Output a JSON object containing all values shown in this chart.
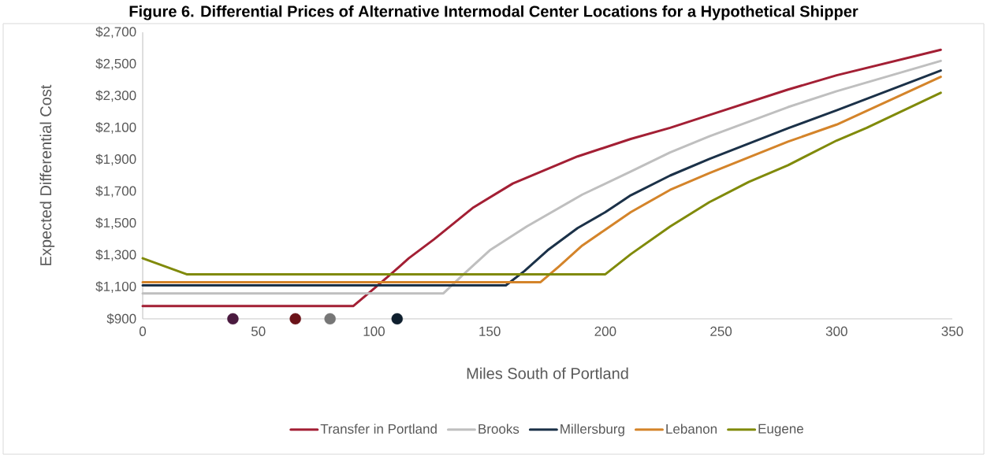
{
  "chart_data": {
    "type": "line",
    "title": "Figure 6. Differential Prices of Alternative Intermodal Center Locations for a Hypothetical Shipper",
    "xlabel": "Miles South of Portland",
    "ylabel": "Expected Differential Cost",
    "xlim": [
      0,
      350
    ],
    "xticks": [
      0,
      50,
      100,
      150,
      200,
      250,
      300,
      350
    ],
    "ylim": [
      900,
      2700
    ],
    "yticks": [
      {
        "value": 900,
        "label": "$900"
      },
      {
        "value": 1100,
        "label": "$1,100"
      },
      {
        "value": 1300,
        "label": "$1,300"
      },
      {
        "value": 1500,
        "label": "$1,500"
      },
      {
        "value": 1700,
        "label": "$1,700"
      },
      {
        "value": 1900,
        "label": "$1,900"
      },
      {
        "value": 2100,
        "label": "$2,100"
      },
      {
        "value": 2300,
        "label": "$2,300"
      },
      {
        "value": 2500,
        "label": "$2,500"
      },
      {
        "value": 2700,
        "label": "$2,700"
      }
    ],
    "grid": false,
    "legend": "bottom",
    "series": [
      {
        "name": "Transfer in Portland",
        "color": "#a31f34",
        "x": [
          0,
          91,
          100,
          108,
          115,
          126,
          143,
          160,
          188,
          211,
          228,
          245,
          279,
          300,
          345
        ],
        "values": [
          980,
          980,
          1090,
          1190,
          1280,
          1400,
          1600,
          1750,
          1920,
          2030,
          2100,
          2180,
          2340,
          2430,
          2590
        ]
      },
      {
        "name": "Brooks",
        "color": "#bfbfbf",
        "x": [
          0,
          130,
          138,
          150,
          166,
          190,
          211,
          228,
          245,
          279,
          300,
          345
        ],
        "values": [
          1060,
          1060,
          1170,
          1330,
          1480,
          1680,
          1825,
          1945,
          2047,
          2230,
          2330,
          2520
        ]
      },
      {
        "name": "Millersburg",
        "color": "#1b3148",
        "x": [
          0,
          157,
          165,
          175,
          188,
          200,
          211,
          228,
          245,
          279,
          300,
          345
        ],
        "values": [
          1110,
          1110,
          1200,
          1330,
          1470,
          1570,
          1676,
          1800,
          1904,
          2097,
          2210,
          2460
        ]
      },
      {
        "name": "Lebanon",
        "color": "#d4842a",
        "x": [
          0,
          172,
          180,
          190,
          200,
          211,
          228,
          245,
          279,
          300,
          345
        ],
        "values": [
          1130,
          1130,
          1230,
          1360,
          1460,
          1570,
          1710,
          1815,
          2013,
          2120,
          2420
        ]
      },
      {
        "name": "Eugene",
        "color": "#808a0a",
        "x": [
          0,
          19,
          200,
          211,
          228,
          245,
          262,
          279,
          300,
          313,
          345
        ],
        "values": [
          1280,
          1180,
          1180,
          1306,
          1480,
          1633,
          1760,
          1865,
          2020,
          2100,
          2320
        ]
      },
      {
        "type": "scatter",
        "color": "#4a1a3f",
        "x": [
          39
        ],
        "values": [
          900
        ]
      },
      {
        "type": "scatter",
        "color": "#6b1218",
        "x": [
          66
        ],
        "values": [
          900
        ]
      },
      {
        "type": "scatter",
        "color": "#767676",
        "x": [
          81
        ],
        "values": [
          900
        ]
      },
      {
        "type": "scatter",
        "color": "#0f1f2e",
        "x": [
          110
        ],
        "values": [
          900
        ]
      }
    ]
  }
}
